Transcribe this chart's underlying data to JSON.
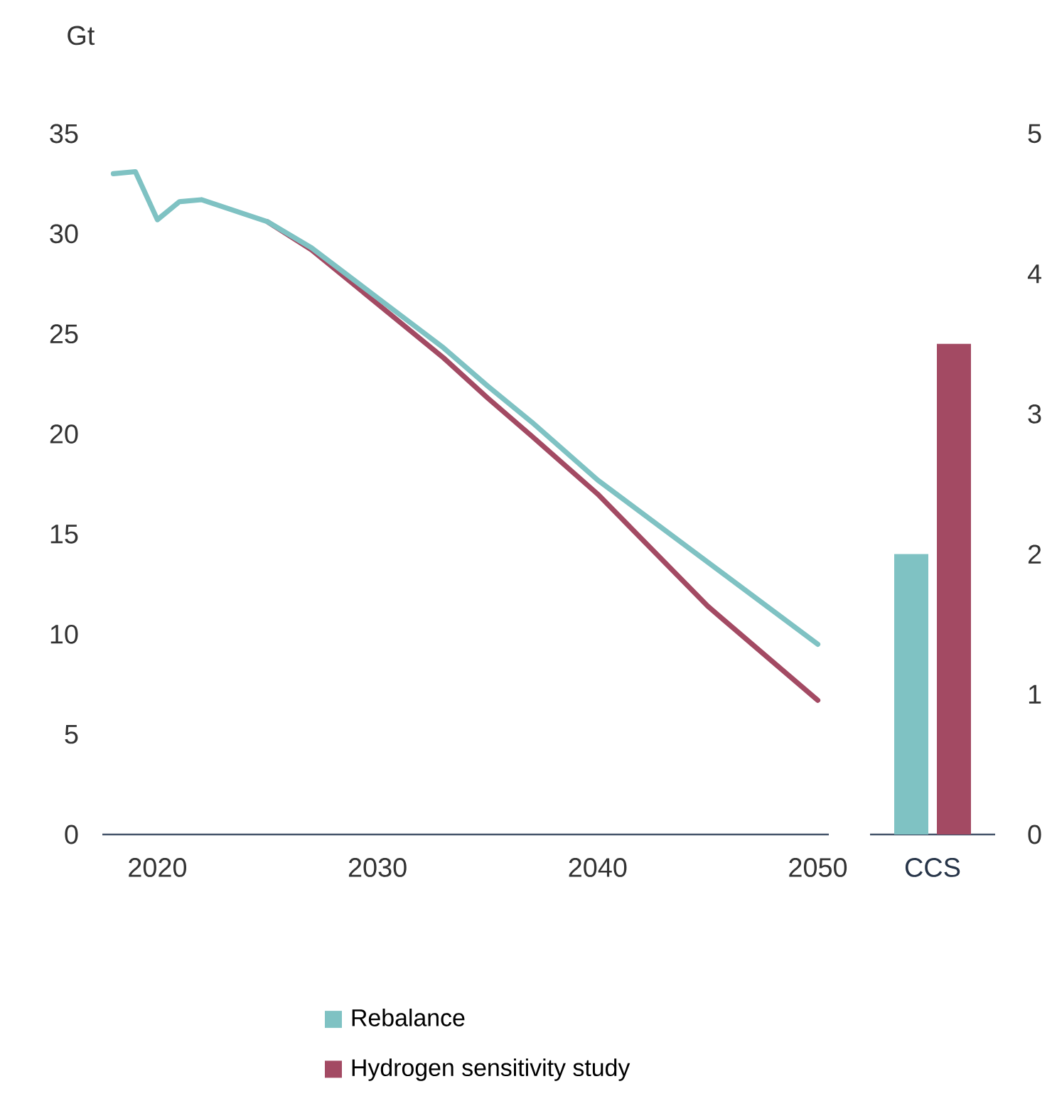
{
  "chart_data": [
    {
      "type": "line",
      "ylabel": "Gt",
      "x": [
        2018,
        2019,
        2020,
        2021,
        2022,
        2025,
        2027,
        2030,
        2033,
        2035,
        2037,
        2040,
        2045,
        2050
      ],
      "xlim": [
        2017.5,
        2050.5
      ],
      "xticks": [
        2020,
        2030,
        2040,
        2050
      ],
      "ylim": [
        0,
        35
      ],
      "yticks": [
        0,
        5,
        10,
        15,
        20,
        25,
        30,
        35
      ],
      "legend": "bottom",
      "line_style": "solid",
      "marker": "none",
      "series": [
        {
          "name": "Rebalance",
          "color": "#7fc2c3",
          "values": [
            33.0,
            33.1,
            30.7,
            31.6,
            31.7,
            30.6,
            29.3,
            26.8,
            24.3,
            22.4,
            20.6,
            17.7,
            13.6,
            9.5
          ]
        },
        {
          "name": "Hydrogen sensitivity study",
          "color": "#a34a63",
          "values": [
            null,
            null,
            null,
            null,
            null,
            30.6,
            29.2,
            26.5,
            23.8,
            21.8,
            19.9,
            17.0,
            11.4,
            6.7
          ]
        }
      ]
    },
    {
      "type": "bar",
      "categories": [
        "CCS"
      ],
      "y2lim": [
        0,
        5
      ],
      "y2ticks": [
        0,
        1,
        2,
        3,
        4,
        5
      ],
      "series": [
        {
          "color": "#7fc2c3",
          "values": [
            2.0
          ],
          "axis": "y2"
        },
        {
          "color": "#a34a63",
          "values": [
            3.5
          ],
          "axis": "y2"
        }
      ]
    }
  ]
}
